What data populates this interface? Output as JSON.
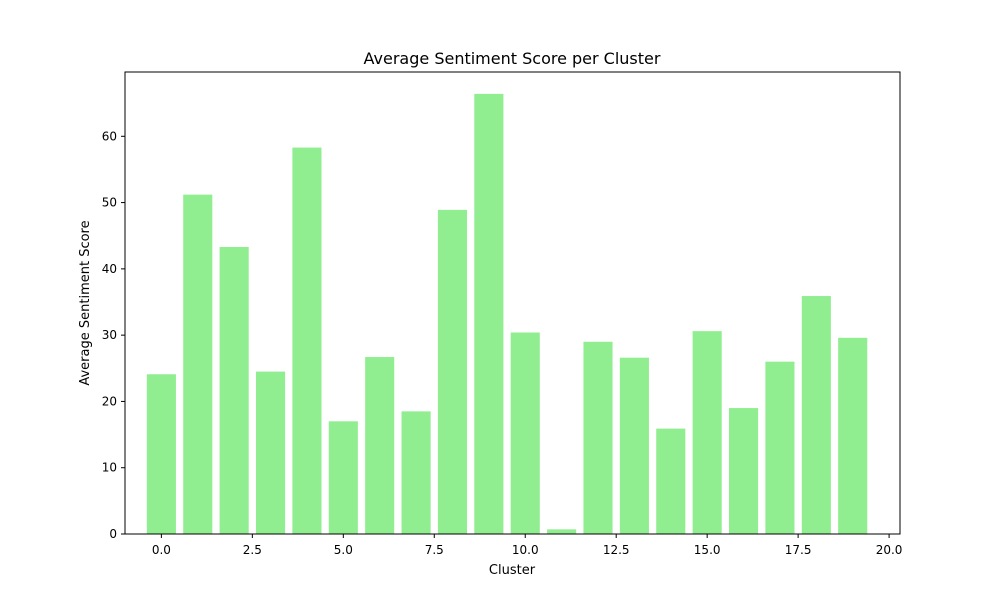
{
  "chart_data": {
    "type": "bar",
    "title": "Average Sentiment Score per Cluster",
    "xlabel": "Cluster",
    "ylabel": "Average Sentiment Score",
    "x": [
      0,
      1,
      2,
      3,
      4,
      5,
      6,
      7,
      8,
      9,
      10,
      11,
      12,
      13,
      14,
      15,
      16,
      17,
      18,
      19
    ],
    "values": [
      24.1,
      51.2,
      43.3,
      24.5,
      58.3,
      17.0,
      26.7,
      18.5,
      48.9,
      66.4,
      30.4,
      0.7,
      29.0,
      26.6,
      15.9,
      30.6,
      19.0,
      26.0,
      35.9,
      29.6
    ],
    "xlim": [
      -1.0,
      20.3
    ],
    "ylim": [
      0,
      69.7
    ],
    "x_ticks": [
      0.0,
      2.5,
      5.0,
      7.5,
      10.0,
      12.5,
      15.0,
      17.5,
      20.0
    ],
    "x_tick_labels": [
      "0.0",
      "2.5",
      "5.0",
      "7.5",
      "10.0",
      "12.5",
      "15.0",
      "17.5",
      "20.0"
    ],
    "y_ticks": [
      0,
      10,
      20,
      30,
      40,
      50,
      60
    ],
    "y_tick_labels": [
      "0",
      "10",
      "20",
      "30",
      "40",
      "50",
      "60"
    ],
    "bar_color": "#90ee90",
    "grid": false,
    "legend": "none"
  }
}
